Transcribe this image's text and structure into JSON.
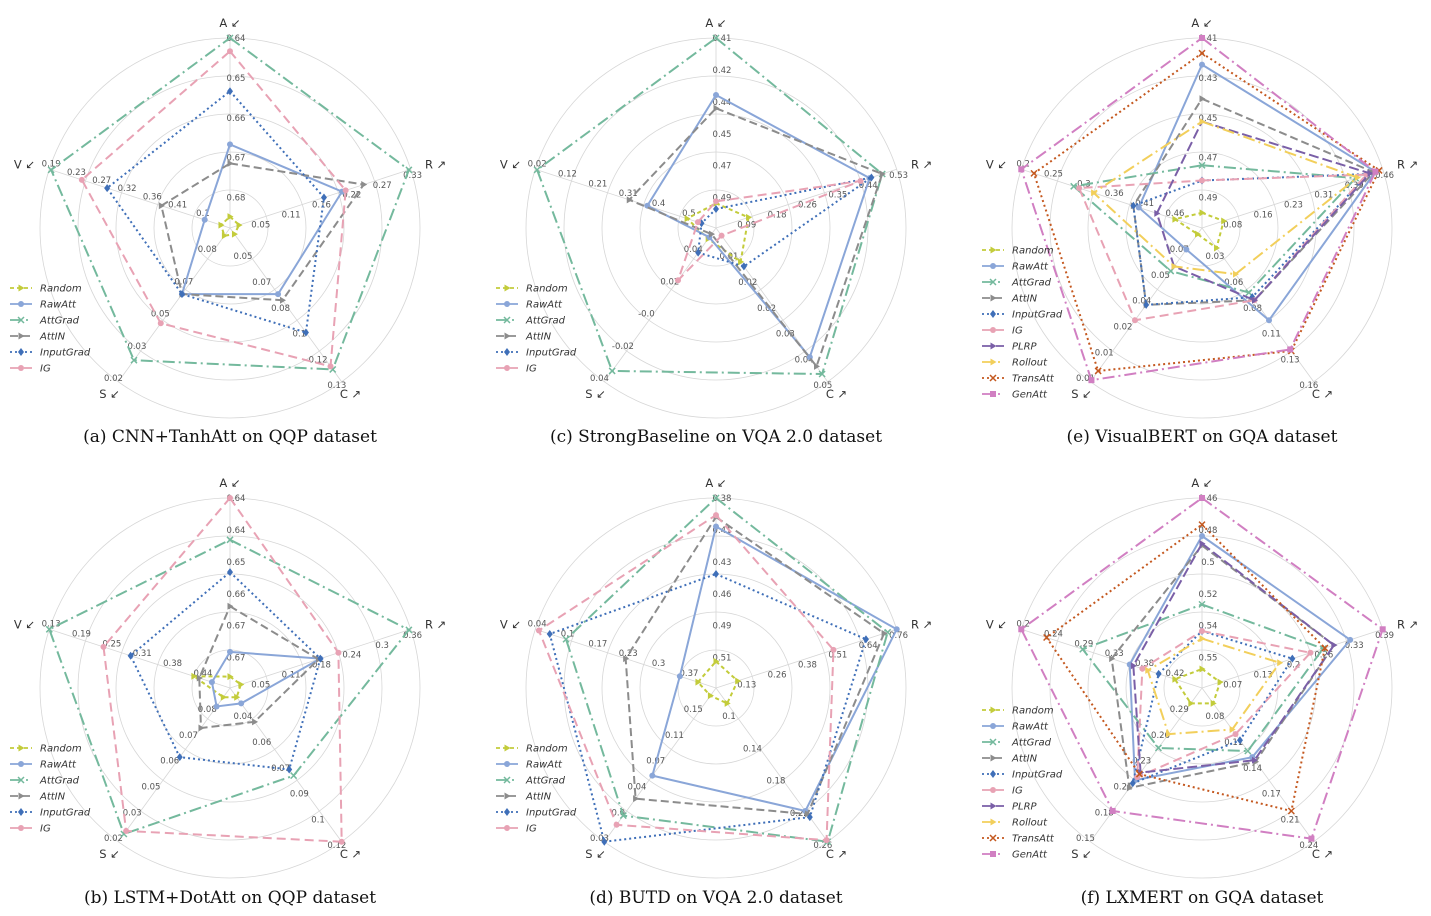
{
  "figure": {
    "axes": [
      "A ↙",
      "R ↗",
      "C ↗",
      "S ↙",
      "V ↙"
    ],
    "grid_rings": 5
  },
  "styles": {
    "Random": {
      "color": "#c3cc3b",
      "dash": "4 3",
      "marker": "tri"
    },
    "RawAtt": {
      "color": "#8aa6d8",
      "dash": "",
      "marker": "circle"
    },
    "AttGrad": {
      "color": "#74b99d",
      "dash": "12 4 2 4",
      "marker": "x"
    },
    "AttIN": {
      "color": "#8c8c8c",
      "dash": "8 4",
      "marker": "tri"
    },
    "InputGrad": {
      "color": "#3f6fb8",
      "dash": "2 3",
      "marker": "diamond"
    },
    "IG": {
      "color": "#e8a2b4",
      "dash": "9 5",
      "marker": "circle"
    },
    "PLRP": {
      "color": "#7a5fa7",
      "dash": "10 4",
      "marker": "tri"
    },
    "Rollout": {
      "color": "#f2cf5b",
      "dash": "12 4 2 4",
      "marker": "tri"
    },
    "TransAtt": {
      "color": "#c4581f",
      "dash": "2 3",
      "marker": "x"
    },
    "GenAtt": {
      "color": "#d17fc2",
      "dash": "12 4 2 4",
      "marker": "square"
    }
  },
  "chart_data": [
    {
      "type": "radar",
      "title": "(a) CNN+TanhAtt on QQP dataset",
      "axes": [
        "A ↙",
        "R ↗",
        "C ↗",
        "S ↙",
        "V ↙"
      ],
      "tick_labels": [
        [
          "0.68",
          "0.67",
          "0.66",
          "0.65",
          "0.64"
        ],
        [
          "0.05",
          "0.11",
          "0.16",
          "0.22",
          "0.27",
          "0.33"
        ],
        [
          "0.05",
          "0.07",
          "0.08",
          "0.1",
          "0.12",
          "0.13"
        ],
        [
          "0.08",
          "0.07",
          "0.05",
          "0.03",
          "0.02"
        ],
        [
          "0.1",
          "0.41",
          "0.36",
          "0.32",
          "0.27",
          "0.23",
          "0.19"
        ]
      ],
      "legend": [
        "Random",
        "RawAtt",
        "AttGrad",
        "AttIN",
        "InputGrad",
        "IG"
      ],
      "series": [
        {
          "name": "Random",
          "values": [
            0.06,
            0.05,
            0.04,
            0.05,
            0.05
          ]
        },
        {
          "name": "RawAtt",
          "values": [
            0.44,
            0.62,
            0.43,
            0.43,
            0.14
          ]
        },
        {
          "name": "AttGrad",
          "values": [
            1.0,
            0.99,
            0.92,
            0.86,
            0.99
          ]
        },
        {
          "name": "AttIN",
          "values": [
            0.34,
            0.74,
            0.47,
            0.43,
            0.38
          ]
        },
        {
          "name": "InputGrad",
          "values": [
            0.72,
            0.52,
            0.68,
            0.43,
            0.68
          ]
        },
        {
          "name": "IG",
          "values": [
            0.93,
            0.64,
            0.9,
            0.62,
            0.82
          ]
        }
      ]
    },
    {
      "type": "radar",
      "title": "(b) LSTM+DotAtt on QQP dataset",
      "axes": [
        "A ↙",
        "R ↗",
        "C ↗",
        "S ↙",
        "V ↙"
      ],
      "tick_labels": [
        [
          "0.67",
          "0.67",
          "0.66",
          "0.65",
          "0.64",
          "0.64"
        ],
        [
          "0.05",
          "0.11",
          "0.18",
          "0.24",
          "0.3",
          "0.36"
        ],
        [
          "0.04",
          "0.06",
          "0.07",
          "0.09",
          "0.1",
          "0.12"
        ],
        [
          "0.08",
          "0.07",
          "0.06",
          "0.05",
          "0.03",
          "0.02"
        ],
        [
          "0.44",
          "0.38",
          "0.31",
          "0.25",
          "0.19",
          "0.13"
        ]
      ],
      "legend": [
        "Random",
        "RawAtt",
        "AttGrad",
        "AttIN",
        "InputGrad",
        "IG"
      ],
      "series": [
        {
          "name": "Random",
          "values": [
            0.06,
            0.06,
            0.06,
            0.06,
            0.2
          ]
        },
        {
          "name": "RawAtt",
          "values": [
            0.19,
            0.5,
            0.1,
            0.12,
            0.1
          ]
        },
        {
          "name": "AttGrad",
          "values": [
            0.78,
            0.99,
            0.57,
            0.95,
            1.0
          ]
        },
        {
          "name": "AttIN",
          "values": [
            0.43,
            0.49,
            0.22,
            0.26,
            0.17
          ]
        },
        {
          "name": "InputGrad",
          "values": [
            0.61,
            0.5,
            0.53,
            0.45,
            0.55
          ]
        },
        {
          "name": "IG",
          "values": [
            1.0,
            0.6,
            1.0,
            0.93,
            0.7
          ]
        }
      ]
    },
    {
      "type": "radar",
      "title": "(c) StrongBaseline on VQA 2.0 dataset",
      "axes": [
        "A ↙",
        "R ↗",
        "C ↗",
        "S ↙",
        "V ↙"
      ],
      "tick_labels": [
        [
          "0.49",
          "0.47",
          "0.45",
          "0.44",
          "0.42",
          "0.41"
        ],
        [
          "0.09",
          "0.18",
          "0.26",
          "0.35",
          "0.44",
          "0.53"
        ],
        [
          "0.01",
          "0.02",
          "0.02",
          "0.03",
          "0.04",
          "0.05"
        ],
        [
          "0.04",
          "0.02",
          "-0.0",
          "-0.02",
          "0.04"
        ],
        [
          "0.5",
          "0.4",
          "0.31",
          "0.21",
          "0.12",
          "0.02"
        ]
      ],
      "legend": [
        "Random",
        "RawAtt",
        "AttGrad",
        "AttIN",
        "InputGrad",
        "IG"
      ],
      "series": [
        {
          "name": "Random",
          "values": [
            0.13,
            0.18,
            0.22,
            0.07,
            0.16
          ]
        },
        {
          "name": "RawAtt",
          "values": [
            0.7,
            0.85,
            0.84,
            0.06,
            0.38
          ]
        },
        {
          "name": "AttGrad",
          "values": [
            1.0,
            0.92,
            0.95,
            0.93,
            0.99
          ]
        },
        {
          "name": "AttIN",
          "values": [
            0.63,
            0.92,
            0.9,
            0.04,
            0.48
          ]
        },
        {
          "name": "InputGrad",
          "values": [
            0.1,
            0.86,
            0.25,
            0.16,
            0.08
          ]
        },
        {
          "name": "IG",
          "values": [
            0.14,
            0.8,
            0.05,
            0.34,
            0.1
          ]
        }
      ]
    },
    {
      "type": "radar",
      "title": "(d) BUTD on VQA 2.0 dataset",
      "axes": [
        "A ↙",
        "R ↗",
        "C ↗",
        "S ↙",
        "V ↙"
      ],
      "tick_labels": [
        [
          "0.51",
          "0.49",
          "0.46",
          "0.43",
          "0.41",
          "0.38"
        ],
        [
          "0.13",
          "0.26",
          "0.38",
          "0.51",
          "0.64",
          "0.76"
        ],
        [
          "0.1",
          "0.14",
          "0.18",
          "0.22",
          "0.26"
        ],
        [
          "0.15",
          "0.11",
          "0.07",
          "0.04",
          "0.0",
          "0.03"
        ],
        [
          "0.37",
          "0.3",
          "0.23",
          "0.17",
          "0.1",
          "0.04"
        ]
      ],
      "legend": [
        "Random",
        "RawAtt",
        "AttGrad",
        "AttIN",
        "InputGrad",
        "IG"
      ],
      "series": [
        {
          "name": "Random",
          "values": [
            0.14,
            0.12,
            0.1,
            0.05,
            0.1
          ]
        },
        {
          "name": "RawAtt",
          "values": [
            0.85,
            1.0,
            0.8,
            0.57,
            0.2
          ]
        },
        {
          "name": "AttGrad",
          "values": [
            1.0,
            0.95,
            1.0,
            0.83,
            0.83
          ]
        },
        {
          "name": "AttIN",
          "values": [
            0.9,
            0.93,
            0.82,
            0.72,
            0.5
          ]
        },
        {
          "name": "InputGrad",
          "values": [
            0.6,
            0.83,
            0.84,
            1.0,
            0.92
          ]
        },
        {
          "name": "IG",
          "values": [
            0.91,
            0.65,
            0.99,
            0.89,
            0.98
          ]
        }
      ]
    },
    {
      "type": "radar",
      "title": "(e) VisualBERT on GQA dataset",
      "axes": [
        "A ↙",
        "R ↗",
        "C ↗",
        "S ↙",
        "V ↙"
      ],
      "tick_labels": [
        [
          "0.49",
          "0.47",
          "0.45",
          "0.43",
          "0.41"
        ],
        [
          "0.08",
          "0.16",
          "0.23",
          "0.31",
          "0.39",
          "0.46"
        ],
        [
          "0.03",
          "0.06",
          "0.08",
          "0.11",
          "0.13",
          "0.16"
        ],
        [
          "0.07",
          "0.05",
          "0.04",
          "0.02",
          "0.01",
          "0.01"
        ],
        [
          "0.46",
          "0.41",
          "0.36",
          "0.3",
          "0.25",
          "0.2"
        ]
      ],
      "legend": [
        "Random",
        "RawAtt",
        "AttGrad",
        "AttIN",
        "InputGrad",
        "IG",
        "PLRP",
        "Rollout",
        "TransAtt",
        "GenAtt"
      ],
      "series": [
        {
          "name": "Random",
          "values": [
            0.08,
            0.12,
            0.13,
            0.04,
            0.15
          ]
        },
        {
          "name": "RawAtt",
          "values": [
            0.86,
            0.96,
            0.6,
            0.14,
            0.35
          ]
        },
        {
          "name": "AttGrad",
          "values": [
            0.33,
            0.85,
            0.42,
            0.28,
            0.71
          ]
        },
        {
          "name": "AttIN",
          "values": [
            0.68,
            0.95,
            0.47,
            0.5,
            0.38
          ]
        },
        {
          "name": "InputGrad",
          "values": [
            0.25,
            0.92,
            0.45,
            0.5,
            0.38
          ]
        },
        {
          "name": "IG",
          "values": [
            0.25,
            0.91,
            0.47,
            0.6,
            0.68
          ]
        },
        {
          "name": "PLRP",
          "values": [
            0.56,
            0.93,
            0.47,
            0.25,
            0.25
          ]
        },
        {
          "name": "Rollout",
          "values": [
            0.56,
            0.86,
            0.3,
            0.25,
            0.6
          ]
        },
        {
          "name": "TransAtt",
          "values": [
            0.92,
            0.98,
            0.8,
            0.93,
            0.93
          ]
        },
        {
          "name": "GenAtt",
          "values": [
            1.0,
            0.96,
            0.79,
            0.99,
            1.0
          ]
        }
      ]
    },
    {
      "type": "radar",
      "title": "(f) LXMERT on GQA dataset",
      "axes": [
        "A ↙",
        "R ↗",
        "C ↗",
        "S ↙",
        "V ↙"
      ],
      "tick_labels": [
        [
          "0.55",
          "0.54",
          "0.52",
          "0.5",
          "0.48",
          "0.46"
        ],
        [
          "0.07",
          "0.13",
          "0.2",
          "0.26",
          "0.33",
          "0.39"
        ],
        [
          "0.08",
          "0.11",
          "0.14",
          "0.17",
          "0.21",
          "0.24"
        ],
        [
          "0.29",
          "0.26",
          "0.23",
          "0.21",
          "0.18",
          "0.15"
        ],
        [
          "0.42",
          "0.38",
          "0.33",
          "0.29",
          "0.24",
          "0.2"
        ]
      ],
      "legend": [
        "Random",
        "RawAtt",
        "AttGrad",
        "AttIN",
        "InputGrad",
        "IG",
        "PLRP",
        "Rollout",
        "TransAtt",
        "GenAtt"
      ],
      "series": [
        {
          "name": "Random",
          "values": [
            0.1,
            0.1,
            0.1,
            0.1,
            0.15
          ]
        },
        {
          "name": "RawAtt",
          "values": [
            0.8,
            0.82,
            0.45,
            0.6,
            0.4
          ]
        },
        {
          "name": "AttGrad",
          "values": [
            0.44,
            0.67,
            0.41,
            0.39,
            0.66
          ]
        },
        {
          "name": "AttIN",
          "values": [
            0.75,
            0.73,
            0.48,
            0.65,
            0.5
          ]
        },
        {
          "name": "InputGrad",
          "values": [
            0.3,
            0.5,
            0.34,
            0.62,
            0.24
          ]
        },
        {
          "name": "IG",
          "values": [
            0.3,
            0.6,
            0.3,
            0.58,
            0.33
          ]
        },
        {
          "name": "PLRP",
          "values": [
            0.76,
            0.73,
            0.47,
            0.55,
            0.38
          ]
        },
        {
          "name": "Rollout",
          "values": [
            0.26,
            0.43,
            0.27,
            0.3,
            0.3
          ]
        },
        {
          "name": "TransAtt",
          "values": [
            0.86,
            0.68,
            0.8,
            0.56,
            0.86
          ]
        },
        {
          "name": "GenAtt",
          "values": [
            1.0,
            1.0,
            0.98,
            0.8,
            1.0
          ]
        }
      ]
    }
  ]
}
